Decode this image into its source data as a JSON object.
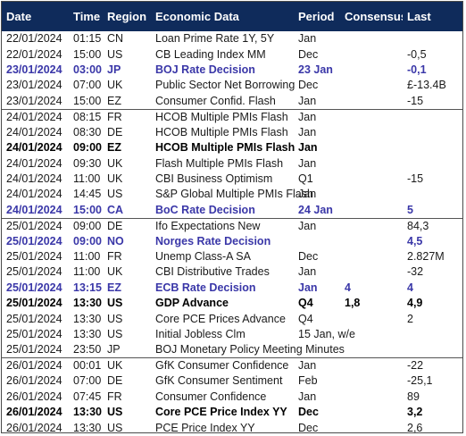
{
  "headers": {
    "date": "Date",
    "time": "Time",
    "region": "Region",
    "data": "Economic Data",
    "period": "Period",
    "consensus": "Consensus",
    "last": "Last"
  },
  "rows": [
    {
      "date": "22/01/2024",
      "time": "01:15",
      "region": "CN",
      "data": "Loan Prime Rate 1Y, 5Y",
      "period": "Jan",
      "consensus": "",
      "last": "",
      "style": "normal",
      "group_start": true
    },
    {
      "date": "22/01/2024",
      "time": "15:00",
      "region": "US",
      "data": "CB Leading Index MM",
      "period": "Dec",
      "consensus": "",
      "last": "-0,5",
      "style": "normal",
      "group_start": false
    },
    {
      "date": "23/01/2024",
      "time": "03:00",
      "region": "JP",
      "data": "BOJ Rate Decision",
      "period": "23 Jan",
      "consensus": "",
      "last": "-0,1",
      "style": "cb",
      "group_start": false
    },
    {
      "date": "23/01/2024",
      "time": "07:00",
      "region": "UK",
      "data": "Public Sector Net Borrowing",
      "period": "Dec",
      "consensus": "",
      "last": "£-13.4B",
      "style": "normal",
      "group_start": false
    },
    {
      "date": "23/01/2024",
      "time": "15:00",
      "region": "EZ",
      "data": "Consumer Confid. Flash",
      "period": "Jan",
      "consensus": "",
      "last": "-15",
      "style": "normal",
      "group_start": false
    },
    {
      "date": "24/01/2024",
      "time": "08:15",
      "region": "FR",
      "data": "HCOB Multiple PMIs Flash",
      "period": "Jan",
      "consensus": "",
      "last": "",
      "style": "normal",
      "group_start": true
    },
    {
      "date": "24/01/2024",
      "time": "08:30",
      "region": "DE",
      "data": "HCOB Multiple PMIs Flash",
      "period": "Jan",
      "consensus": "",
      "last": "",
      "style": "normal",
      "group_start": false
    },
    {
      "date": "24/01/2024",
      "time": "09:00",
      "region": "EZ",
      "data": "HCOB Multiple PMIs Flash",
      "period": "Jan",
      "consensus": "",
      "last": "",
      "style": "bold",
      "group_start": false
    },
    {
      "date": "24/01/2024",
      "time": "09:30",
      "region": "UK",
      "data": "Flash Multiple PMIs Flash",
      "period": "Jan",
      "consensus": "",
      "last": "",
      "style": "normal",
      "group_start": false
    },
    {
      "date": "24/01/2024",
      "time": "11:00",
      "region": "UK",
      "data": "CBI Business Optimism",
      "period": "Q1",
      "consensus": "",
      "last": "-15",
      "style": "normal",
      "group_start": false
    },
    {
      "date": "24/01/2024",
      "time": "14:45",
      "region": "US",
      "data": "S&P Global Multiple PMIs Flash",
      "period": "Jan",
      "consensus": "",
      "last": "",
      "style": "normal",
      "group_start": false
    },
    {
      "date": "24/01/2024",
      "time": "15:00",
      "region": "CA",
      "data": "BoC Rate Decision",
      "period": "24 Jan",
      "consensus": "",
      "last": "5",
      "style": "cb",
      "group_start": false
    },
    {
      "date": "25/01/2024",
      "time": "09:00",
      "region": "DE",
      "data": "Ifo Expectations New",
      "period": "Jan",
      "consensus": "",
      "last": "84,3",
      "style": "normal",
      "group_start": true
    },
    {
      "date": "25/01/2024",
      "time": "09:00",
      "region": "NO",
      "data": "Norges Rate Decision",
      "period": "",
      "consensus": "",
      "last": "4,5",
      "style": "cb",
      "group_start": false
    },
    {
      "date": "25/01/2024",
      "time": "11:00",
      "region": "FR",
      "data": "Unemp Class-A SA",
      "period": "Dec",
      "consensus": "",
      "last": "2.827M",
      "style": "normal",
      "group_start": false
    },
    {
      "date": "25/01/2024",
      "time": "11:00",
      "region": "UK",
      "data": "CBI Distributive Trades",
      "period": "Jan",
      "consensus": "",
      "last": "-32",
      "style": "normal",
      "group_start": false
    },
    {
      "date": "25/01/2024",
      "time": "13:15",
      "region": "EZ",
      "data": "ECB Rate Decision",
      "period": "Jan",
      "consensus": "4",
      "last": "4",
      "style": "cb",
      "group_start": false
    },
    {
      "date": "25/01/2024",
      "time": "13:30",
      "region": "US",
      "data": "GDP Advance",
      "period": "Q4",
      "consensus": "1,8",
      "last": "4,9",
      "style": "bold",
      "group_start": false
    },
    {
      "date": "25/01/2024",
      "time": "13:30",
      "region": "US",
      "data": "Core PCE Prices Advance",
      "period": "Q4",
      "consensus": "",
      "last": "2",
      "style": "normal",
      "group_start": false
    },
    {
      "date": "25/01/2024",
      "time": "13:30",
      "region": "US",
      "data": "Initial Jobless Clm",
      "period": "15 Jan, w/e",
      "consensus": "",
      "last": "",
      "style": "normal",
      "group_start": false
    },
    {
      "date": "25/01/2024",
      "time": "23:50",
      "region": "JP",
      "data": "BOJ Monetary Policy Meeting Minutes",
      "period": "",
      "consensus": "",
      "last": "",
      "style": "normal",
      "group_start": false
    },
    {
      "date": "26/01/2024",
      "time": "00:01",
      "region": "UK",
      "data": "GfK Consumer Confidence",
      "period": "Jan",
      "consensus": "",
      "last": "-22",
      "style": "normal",
      "group_start": true
    },
    {
      "date": "26/01/2024",
      "time": "07:00",
      "region": "DE",
      "data": "GfK Consumer Sentiment",
      "period": "Feb",
      "consensus": "",
      "last": "-25,1",
      "style": "normal",
      "group_start": false
    },
    {
      "date": "26/01/2024",
      "time": "07:45",
      "region": "FR",
      "data": "Consumer Confidence",
      "period": "Jan",
      "consensus": "",
      "last": "89",
      "style": "normal",
      "group_start": false
    },
    {
      "date": "26/01/2024",
      "time": "13:30",
      "region": "US",
      "data": "Core PCE Price Index YY",
      "period": "Dec",
      "consensus": "",
      "last": "3,2",
      "style": "bold",
      "group_start": false
    },
    {
      "date": "26/01/2024",
      "time": "13:30",
      "region": "US",
      "data": "PCE Price Index YY",
      "period": "Dec",
      "consensus": "",
      "last": "2,6",
      "style": "normal",
      "group_start": false
    }
  ]
}
